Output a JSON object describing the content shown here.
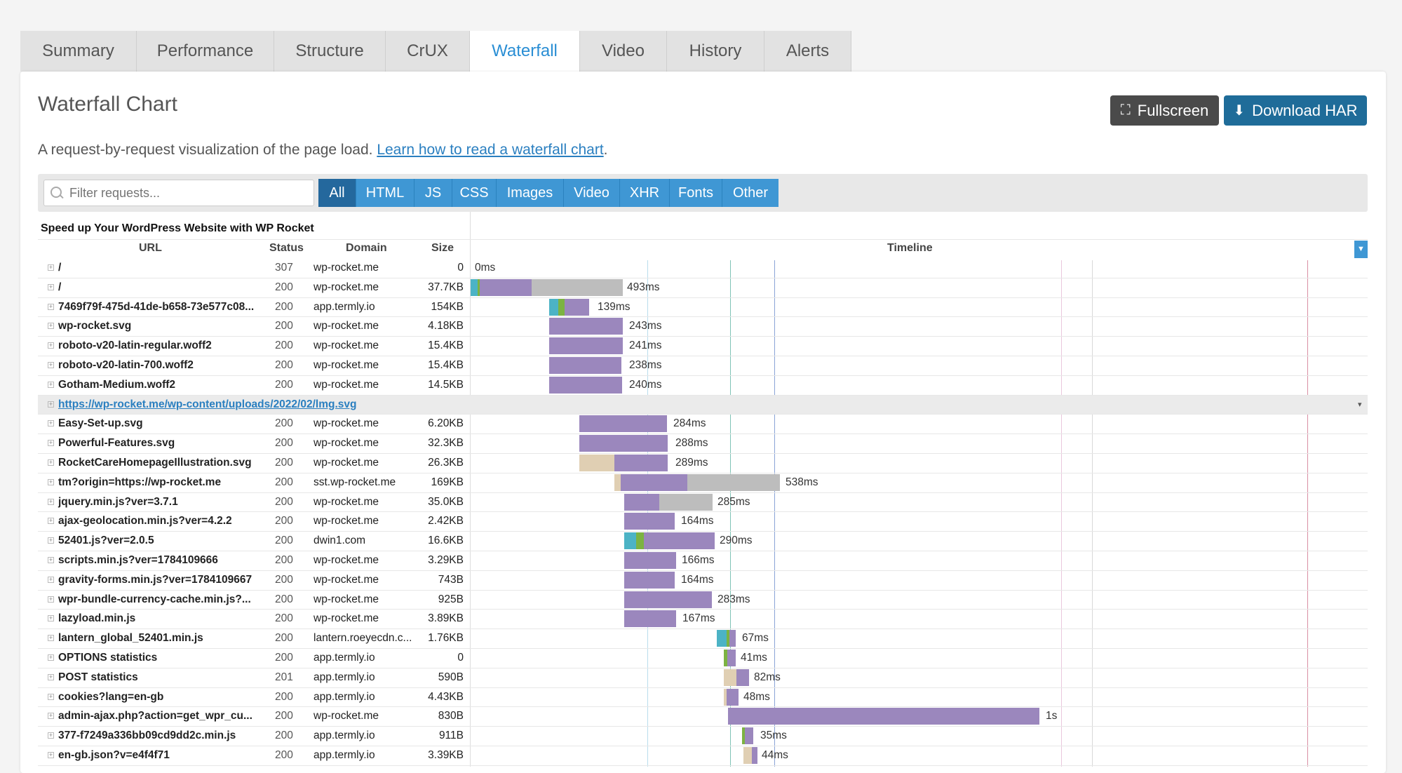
{
  "tabs": [
    "Summary",
    "Performance",
    "Structure",
    "CrUX",
    "Waterfall",
    "Video",
    "History",
    "Alerts"
  ],
  "active_tab": "Waterfall",
  "panel": {
    "title": "Waterfall Chart",
    "fullscreen_label": "Fullscreen",
    "download_label": "Download HAR",
    "description": "A request-by-request visualization of the page load. ",
    "learn_link": "Learn how to read a waterfall chart",
    "description_end": "."
  },
  "filter": {
    "placeholder": "Filter requests...",
    "buttons": [
      "All",
      "HTML",
      "JS",
      "CSS",
      "Images",
      "Video",
      "XHR",
      "Fonts",
      "Other"
    ],
    "active": "All"
  },
  "table": {
    "caption": "Speed up Your WordPress Website with WP Rocket",
    "headers": {
      "url": "URL",
      "status": "Status",
      "domain": "Domain",
      "size": "Size",
      "timeline": "Timeline"
    },
    "rows": [
      {
        "url": "/",
        "status": "307",
        "domain": "wp-rocket.me",
        "size": "0",
        "time": "0ms"
      },
      {
        "url": "/",
        "status": "200",
        "domain": "wp-rocket.me",
        "size": "37.7KB",
        "time": "493ms"
      },
      {
        "url": "7469f79f-475d-41de-b658-73e577c08...",
        "status": "200",
        "domain": "app.termly.io",
        "size": "154KB",
        "time": "139ms"
      },
      {
        "url": "wp-rocket.svg",
        "status": "200",
        "domain": "wp-rocket.me",
        "size": "4.18KB",
        "time": "243ms"
      },
      {
        "url": "roboto-v20-latin-regular.woff2",
        "status": "200",
        "domain": "wp-rocket.me",
        "size": "15.4KB",
        "time": "241ms"
      },
      {
        "url": "roboto-v20-latin-700.woff2",
        "status": "200",
        "domain": "wp-rocket.me",
        "size": "15.4KB",
        "time": "238ms"
      },
      {
        "url": "Gotham-Medium.woff2",
        "status": "200",
        "domain": "wp-rocket.me",
        "size": "14.5KB",
        "time": "240ms"
      },
      {
        "url": "https://wp-rocket.me/wp-content/uploads/2022/02/lmg.svg",
        "status": "",
        "domain": "",
        "size": "",
        "time": "",
        "link": true
      },
      {
        "url": "Easy-Set-up.svg",
        "status": "200",
        "domain": "wp-rocket.me",
        "size": "6.20KB",
        "time": "284ms"
      },
      {
        "url": "Powerful-Features.svg",
        "status": "200",
        "domain": "wp-rocket.me",
        "size": "32.3KB",
        "time": "288ms"
      },
      {
        "url": "RocketCareHomepageIllustration.svg",
        "status": "200",
        "domain": "wp-rocket.me",
        "size": "26.3KB",
        "time": "289ms"
      },
      {
        "url": "tm?origin=https://wp-rocket.me",
        "status": "200",
        "domain": "sst.wp-rocket.me",
        "size": "169KB",
        "time": "538ms"
      },
      {
        "url": "jquery.min.js?ver=3.7.1",
        "status": "200",
        "domain": "wp-rocket.me",
        "size": "35.0KB",
        "time": "285ms"
      },
      {
        "url": "ajax-geolocation.min.js?ver=4.2.2",
        "status": "200",
        "domain": "wp-rocket.me",
        "size": "2.42KB",
        "time": "164ms"
      },
      {
        "url": "52401.js?ver=2.0.5",
        "status": "200",
        "domain": "dwin1.com",
        "size": "16.6KB",
        "time": "290ms"
      },
      {
        "url": "scripts.min.js?ver=1784109666",
        "status": "200",
        "domain": "wp-rocket.me",
        "size": "3.29KB",
        "time": "166ms"
      },
      {
        "url": "gravity-forms.min.js?ver=1784109667",
        "status": "200",
        "domain": "wp-rocket.me",
        "size": "743B",
        "time": "164ms"
      },
      {
        "url": "wpr-bundle-currency-cache.min.js?...",
        "status": "200",
        "domain": "wp-rocket.me",
        "size": "925B",
        "time": "283ms"
      },
      {
        "url": "lazyload.min.js",
        "status": "200",
        "domain": "wp-rocket.me",
        "size": "3.89KB",
        "time": "167ms"
      },
      {
        "url": "lantern_global_52401.min.js",
        "status": "200",
        "domain": "lantern.roeyecdn.c...",
        "size": "1.76KB",
        "time": "67ms"
      },
      {
        "url": "OPTIONS statistics",
        "status": "200",
        "domain": "app.termly.io",
        "size": "0",
        "time": "41ms"
      },
      {
        "url": "POST statistics",
        "status": "201",
        "domain": "app.termly.io",
        "size": "590B",
        "time": "82ms"
      },
      {
        "url": "cookies?lang=en-gb",
        "status": "200",
        "domain": "app.termly.io",
        "size": "4.43KB",
        "time": "48ms"
      },
      {
        "url": "admin-ajax.php?action=get_wpr_cu...",
        "status": "200",
        "domain": "wp-rocket.me",
        "size": "830B",
        "time": "1s"
      },
      {
        "url": "377-f7249a336bb09cd9dd2c.min.js",
        "status": "200",
        "domain": "app.termly.io",
        "size": "911B",
        "time": "35ms"
      },
      {
        "url": "en-gb.json?v=e4f4f71",
        "status": "200",
        "domain": "app.termly.io",
        "size": "3.39KB",
        "time": "44ms"
      }
    ]
  },
  "colors": {
    "accent": "#2a8ed4",
    "dark_button": "#4a4a4a",
    "har_button": "#1f6c99",
    "bar_download": "#9b87bd",
    "bar_wait": "#bdbdbd",
    "bar_dns": "#4cb3c5",
    "bar_connect": "#7cb342",
    "bar_blocked": "#e0cfb3"
  }
}
